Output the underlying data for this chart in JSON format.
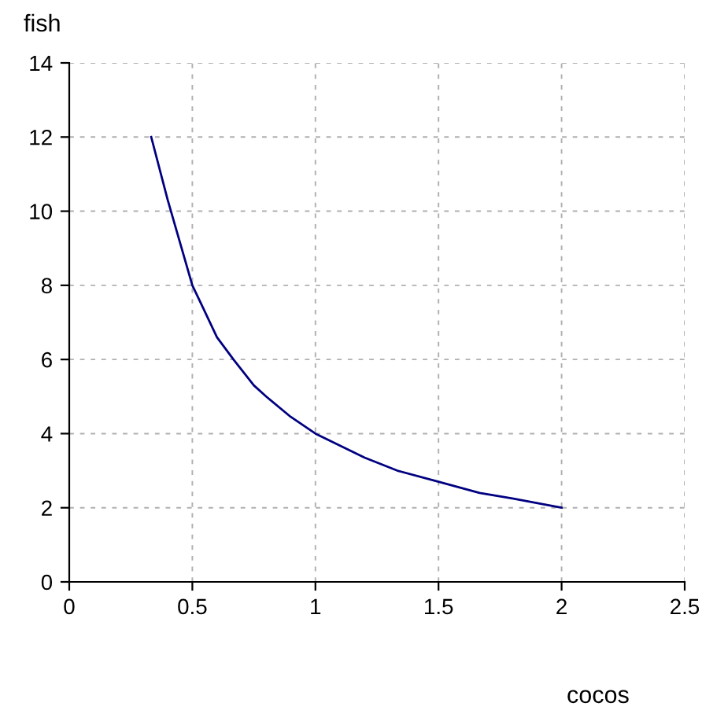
{
  "chart_data": {
    "type": "line",
    "xlabel": "cocos",
    "ylabel": "fish",
    "x": [
      0.333,
      0.4,
      0.5,
      0.6,
      0.667,
      0.75,
      0.8,
      0.9,
      1,
      1.2,
      1.333,
      1.5,
      1.667,
      1.8,
      2
    ],
    "series": [
      {
        "color": "#000080",
        "values": [
          12,
          10.3,
          8,
          6.6,
          6,
          5.3,
          5,
          4.45,
          4,
          3.35,
          3,
          2.7,
          2.4,
          2.25,
          2
        ]
      }
    ],
    "xlim": [
      0,
      2.5
    ],
    "xticks": [
      0,
      0.5,
      1,
      1.5,
      2,
      2.5
    ],
    "ylim": [
      0,
      14
    ],
    "yticks": [
      0,
      2,
      4,
      6,
      8,
      10,
      12,
      14
    ],
    "grid": true,
    "marker": "none",
    "line_style": "solid"
  }
}
